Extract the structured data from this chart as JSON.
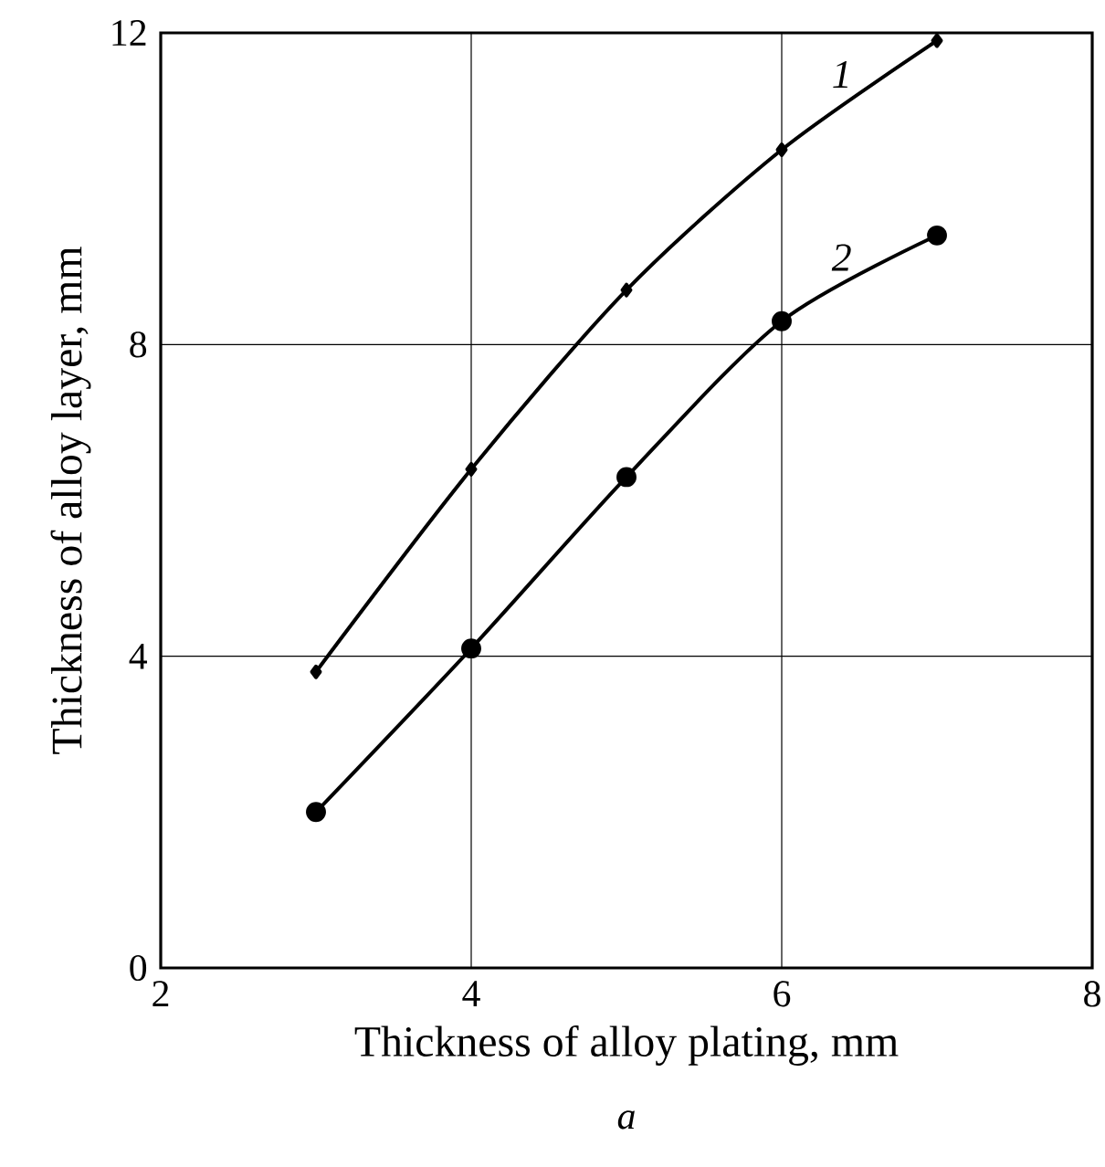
{
  "chart_data": {
    "type": "line",
    "xlabel": "Thickness of alloy plating, mm",
    "ylabel": "Thickness of alloy layer, mm",
    "annotations": [
      "a"
    ],
    "x": [
      3,
      4,
      5,
      6,
      7
    ],
    "xlim": [
      2,
      8
    ],
    "ylim": [
      0,
      12
    ],
    "xticks": [
      2,
      4,
      6,
      8
    ],
    "yticks": [
      0,
      4,
      8,
      12
    ],
    "grid": true,
    "line_style": "solid",
    "series": [
      {
        "name": "1",
        "color": "#000000",
        "marker": "diamond",
        "values": [
          3.8,
          6.4,
          8.7,
          10.5,
          11.9
        ]
      },
      {
        "name": "2",
        "color": "#000000",
        "marker": "circle",
        "values": [
          2.0,
          4.1,
          6.3,
          8.3,
          9.4
        ]
      }
    ]
  }
}
